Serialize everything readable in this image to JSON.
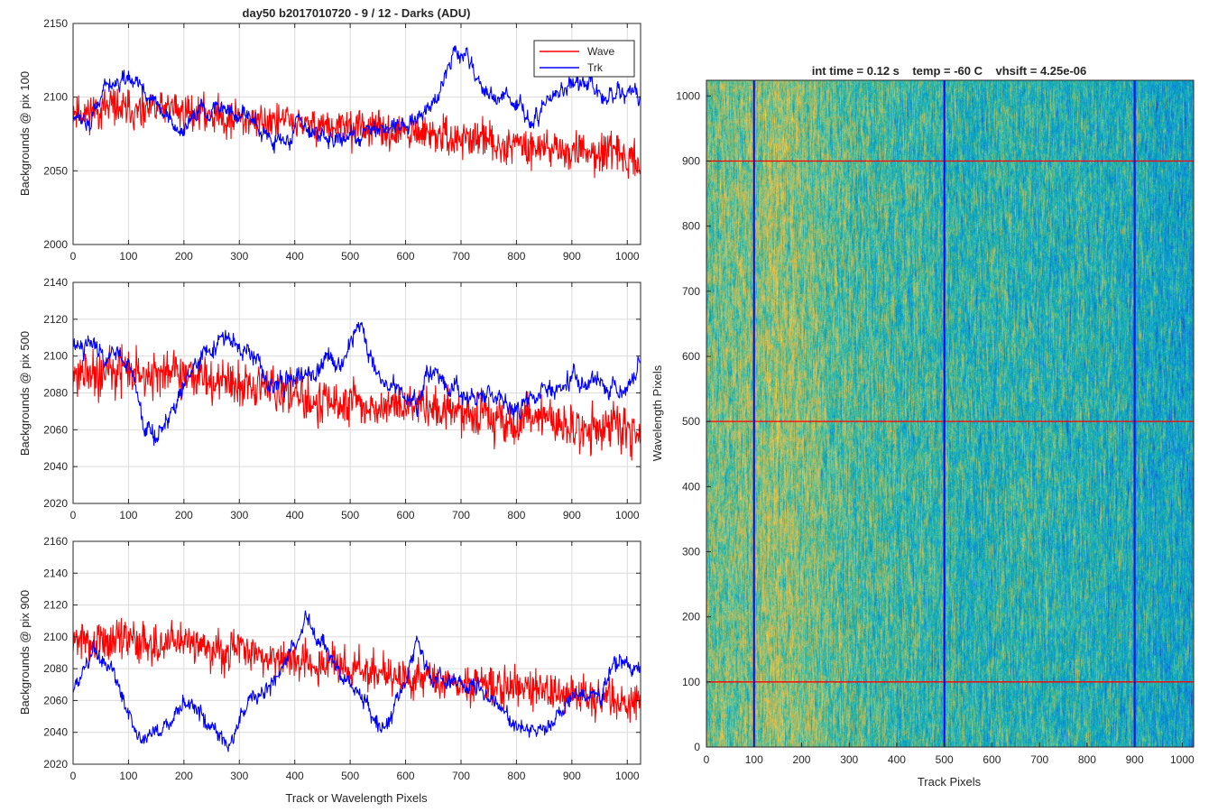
{
  "figure": {
    "suptitle": "day50 b2017010720 - 9 / 12 - Darks (ADU)",
    "right_title": "int time = 0.12 s    temp = -60 C    vhsift = 4.25e-06"
  },
  "colors": {
    "wave": "#ff0000",
    "trk": "#0000ff",
    "axis": "#262626",
    "grid": "#dcdcdc"
  },
  "chart_data": [
    {
      "type": "line",
      "title": "day50 b2017010720 - 9 / 12 - Darks (ADU)",
      "ylabel": "Backgrounds @ pix 100",
      "xlabel": "",
      "xlim": [
        0,
        1024
      ],
      "ylim": [
        2000,
        2150
      ],
      "xticks": [
        0,
        100,
        200,
        300,
        400,
        500,
        600,
        700,
        800,
        900,
        1000
      ],
      "yticks": [
        2000,
        2050,
        2100,
        2150
      ],
      "grid": true,
      "legend_location": "top-right",
      "series": [
        {
          "name": "Wave",
          "color": "#ff0000",
          "n": 1024,
          "seed": 11,
          "noise": 13,
          "wiggle": 4,
          "knots_x": [
            0,
            200,
            400,
            600,
            800,
            1024
          ],
          "knots_y": [
            2092,
            2090,
            2082,
            2076,
            2068,
            2058
          ]
        },
        {
          "name": "Trk",
          "color": "#0000ff",
          "n": 1024,
          "seed": 12,
          "noise": 4,
          "wiggle": 6,
          "knots_x": [
            0,
            30,
            60,
            100,
            150,
            190,
            230,
            280,
            320,
            380,
            420,
            470,
            500,
            560,
            620,
            660,
            690,
            710,
            740,
            780,
            830,
            880,
            920,
            960,
            1024
          ],
          "knots_y": [
            2088,
            2082,
            2110,
            2112,
            2100,
            2075,
            2090,
            2092,
            2085,
            2070,
            2082,
            2068,
            2075,
            2080,
            2085,
            2100,
            2135,
            2128,
            2100,
            2102,
            2085,
            2105,
            2112,
            2102,
            2100
          ]
        }
      ]
    },
    {
      "type": "line",
      "title": "",
      "ylabel": "Backgrounds @ pix 500",
      "xlabel": "",
      "xlim": [
        0,
        1024
      ],
      "ylim": [
        2020,
        2140
      ],
      "xticks": [
        0,
        100,
        200,
        300,
        400,
        500,
        600,
        700,
        800,
        900,
        1000
      ],
      "yticks": [
        2020,
        2040,
        2060,
        2080,
        2100,
        2120,
        2140
      ],
      "grid": true,
      "series": [
        {
          "name": "Wave",
          "color": "#ff0000",
          "n": 1024,
          "seed": 21,
          "noise": 13,
          "wiggle": 4,
          "knots_x": [
            0,
            200,
            400,
            600,
            800,
            1024
          ],
          "knots_y": [
            2092,
            2090,
            2078,
            2072,
            2065,
            2058
          ]
        },
        {
          "name": "Trk",
          "color": "#0000ff",
          "n": 1024,
          "seed": 22,
          "noise": 4,
          "wiggle": 5,
          "knots_x": [
            0,
            50,
            100,
            130,
            160,
            200,
            240,
            280,
            320,
            360,
            420,
            460,
            500,
            520,
            560,
            600,
            620,
            650,
            700,
            750,
            800,
            850,
            900,
            950,
            1000,
            1024
          ],
          "knots_y": [
            2108,
            2105,
            2100,
            2060,
            2055,
            2090,
            2100,
            2112,
            2100,
            2085,
            2090,
            2098,
            2102,
            2115,
            2085,
            2080,
            2075,
            2090,
            2080,
            2080,
            2072,
            2080,
            2088,
            2085,
            2080,
            2102
          ]
        }
      ]
    },
    {
      "type": "line",
      "title": "",
      "ylabel": "Backgrounds @ pix 900",
      "xlabel": "Track or Wavelength Pixels",
      "xlim": [
        0,
        1024
      ],
      "ylim": [
        2020,
        2160
      ],
      "xticks": [
        0,
        100,
        200,
        300,
        400,
        500,
        600,
        700,
        800,
        900,
        1000
      ],
      "yticks": [
        2020,
        2040,
        2060,
        2080,
        2100,
        2120,
        2140,
        2160
      ],
      "grid": true,
      "series": [
        {
          "name": "Wave",
          "color": "#ff0000",
          "n": 1024,
          "seed": 31,
          "noise": 13,
          "wiggle": 4,
          "knots_x": [
            0,
            200,
            400,
            600,
            800,
            1024
          ],
          "knots_y": [
            2098,
            2096,
            2086,
            2074,
            2068,
            2058
          ]
        },
        {
          "name": "Trk",
          "color": "#0000ff",
          "n": 1024,
          "seed": 32,
          "noise": 4,
          "wiggle": 5,
          "knots_x": [
            0,
            40,
            80,
            120,
            160,
            200,
            250,
            280,
            320,
            360,
            400,
            420,
            440,
            480,
            520,
            560,
            600,
            620,
            650,
            700,
            760,
            800,
            850,
            900,
            950,
            990,
            1024
          ],
          "knots_y": [
            2065,
            2090,
            2070,
            2035,
            2040,
            2060,
            2045,
            2030,
            2060,
            2070,
            2090,
            2115,
            2100,
            2080,
            2060,
            2040,
            2075,
            2100,
            2070,
            2075,
            2060,
            2045,
            2040,
            2060,
            2065,
            2085,
            2075
          ]
        }
      ]
    },
    {
      "type": "heatmap",
      "title": "int time = 0.12 s    temp = -60 C    vhsift = 4.25e-06",
      "xlabel": "Track Pixels",
      "ylabel": "Wavelength Pixels",
      "xlim": [
        0,
        1024
      ],
      "ylim": [
        0,
        1024
      ],
      "xticks": [
        0,
        100,
        200,
        300,
        400,
        500,
        600,
        700,
        800,
        900,
        1000
      ],
      "yticks": [
        0,
        100,
        200,
        300,
        400,
        500,
        600,
        700,
        800,
        900,
        1000
      ],
      "colormap": "parula",
      "column_profile": {
        "x": [
          0,
          60,
          100,
          140,
          180,
          250,
          320,
          420,
          500,
          600,
          700,
          800,
          900,
          1000,
          1024
        ],
        "v": [
          0.58,
          0.58,
          0.6,
          0.64,
          0.62,
          0.56,
          0.52,
          0.5,
          0.48,
          0.46,
          0.46,
          0.44,
          0.42,
          0.38,
          0.36
        ]
      },
      "dark_columns": [
        100,
        500,
        900
      ],
      "markers": {
        "vertical_x": [
          100,
          500,
          900
        ],
        "horizontal_y": [
          100,
          500,
          900
        ],
        "vertical_color": "#0000ff",
        "horizontal_color": "#ff0000"
      }
    }
  ]
}
